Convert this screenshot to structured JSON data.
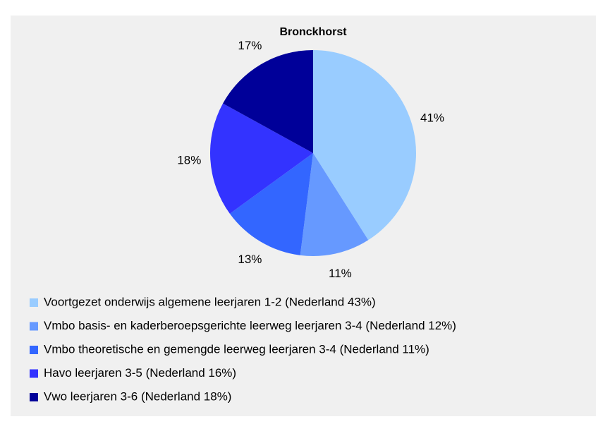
{
  "chart_data": {
    "type": "pie",
    "title": "Bronckhorst",
    "categories": [
      "Voortgezet onderwijs algemene leerjaren 1-2 (Nederland 43%)",
      "Vmbo basis- en kaderberoepsgerichte leerweg leerjaren 3-4 (Nederland 12%)",
      "Vmbo theoretische en gemengde leerweg leerjaren 3-4 (Nederland 11%)",
      "Havo leerjaren 3-5 (Nederland 16%)",
      "Vwo leerjaren 3-6 (Nederland 18%)"
    ],
    "values": [
      41,
      11,
      13,
      18,
      17
    ],
    "value_labels": [
      "41%",
      "11%",
      "13%",
      "18%",
      "17%"
    ],
    "colors": [
      "#99ccff",
      "#6699ff",
      "#3366ff",
      "#3333ff",
      "#000099"
    ],
    "legend": "bottom"
  }
}
